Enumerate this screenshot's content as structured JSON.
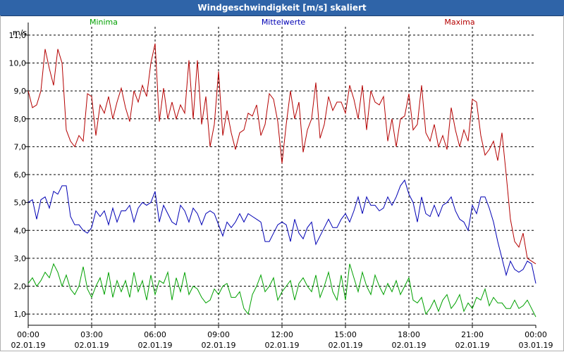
{
  "window": {
    "title": "Windgeschwindigkeit [m/s] skaliert"
  },
  "chart_data": {
    "type": "line",
    "title": "Windgeschwindigkeit [m/s] skaliert",
    "ylabel": "m/s",
    "ylim": [
      0.6,
      11.3
    ],
    "yticks": [
      "1,0",
      "2,0",
      "3,0",
      "4,0",
      "5,0",
      "6,0",
      "7,0",
      "8,0",
      "9,0",
      "10,0",
      "11,0"
    ],
    "ytick_values": [
      1,
      2,
      3,
      4,
      5,
      6,
      7,
      8,
      9,
      10,
      11
    ],
    "xlim": [
      0,
      24
    ],
    "xticks": [
      {
        "x": 0,
        "time": "00:00",
        "date": "02.01.19"
      },
      {
        "x": 3,
        "time": "03:00",
        "date": "02.01.19"
      },
      {
        "x": 6,
        "time": "06:00",
        "date": "02.01.19"
      },
      {
        "x": 9,
        "time": "09:00",
        "date": "02.01.19"
      },
      {
        "x": 12,
        "time": "12:00",
        "date": "02.01.19"
      },
      {
        "x": 15,
        "time": "15:00",
        "date": "02.01.19"
      },
      {
        "x": 18,
        "time": "18:00",
        "date": "02.01.19"
      },
      {
        "x": 21,
        "time": "21:00",
        "date": "02.01.19"
      },
      {
        "x": 24,
        "time": "00:00",
        "date": "03.01.19"
      }
    ],
    "grid": true,
    "series": [
      {
        "name": "Minima",
        "color": "#00a000",
        "x": [
          0,
          0.2,
          0.4,
          0.6,
          0.8,
          1.0,
          1.2,
          1.4,
          1.6,
          1.8,
          2.0,
          2.2,
          2.4,
          2.6,
          2.8,
          3.0,
          3.2,
          3.4,
          3.6,
          3.8,
          4.0,
          4.2,
          4.4,
          4.6,
          4.8,
          5.0,
          5.2,
          5.4,
          5.6,
          5.8,
          6.0,
          6.2,
          6.4,
          6.6,
          6.8,
          7.0,
          7.2,
          7.4,
          7.6,
          7.8,
          8.0,
          8.2,
          8.4,
          8.6,
          8.8,
          9.0,
          9.2,
          9.4,
          9.6,
          9.8,
          10.0,
          10.2,
          10.4,
          10.6,
          10.8,
          11.0,
          11.2,
          11.4,
          11.6,
          11.8,
          12.0,
          12.2,
          12.4,
          12.6,
          12.8,
          13.0,
          13.2,
          13.4,
          13.6,
          13.8,
          14.0,
          14.2,
          14.4,
          14.6,
          14.8,
          15.0,
          15.2,
          15.4,
          15.6,
          15.8,
          16.0,
          16.2,
          16.4,
          16.6,
          16.8,
          17.0,
          17.2,
          17.4,
          17.6,
          17.8,
          18.0,
          18.2,
          18.4,
          18.6,
          18.8,
          19.0,
          19.2,
          19.4,
          19.6,
          19.8,
          20.0,
          20.2,
          20.4,
          20.6,
          20.8,
          21.0,
          21.2,
          21.4,
          21.6,
          21.8,
          22.0,
          22.2,
          22.4,
          22.6,
          22.8,
          23.0,
          23.2,
          23.4,
          23.6,
          23.8,
          24.0
        ],
        "values": [
          2.1,
          2.3,
          2.0,
          2.2,
          2.5,
          2.3,
          2.8,
          2.5,
          2.0,
          2.4,
          1.9,
          1.7,
          2.0,
          2.7,
          1.9,
          1.6,
          2.0,
          2.3,
          1.7,
          2.5,
          1.6,
          2.2,
          1.8,
          2.2,
          1.6,
          2.5,
          1.8,
          2.2,
          1.5,
          2.4,
          1.7,
          2.2,
          2.1,
          2.5,
          1.5,
          2.3,
          1.8,
          2.5,
          1.7,
          2.0,
          1.9,
          1.6,
          1.4,
          1.5,
          1.9,
          1.7,
          2.0,
          2.1,
          1.6,
          1.6,
          1.8,
          1.2,
          1.0,
          1.7,
          2.0,
          2.4,
          1.8,
          2.0,
          2.3,
          1.5,
          1.8,
          2.0,
          2.2,
          1.5,
          2.1,
          2.3,
          2.0,
          1.8,
          2.4,
          1.6,
          2.0,
          2.5,
          1.8,
          1.5,
          2.4,
          1.5,
          2.8,
          2.3,
          1.8,
          2.5,
          2.0,
          1.7,
          2.4,
          2.0,
          1.7,
          2.1,
          1.8,
          2.2,
          1.7,
          2.0,
          2.3,
          1.5,
          1.4,
          1.6,
          1.0,
          1.2,
          1.5,
          1.1,
          1.5,
          1.7,
          1.2,
          1.4,
          1.7,
          1.1,
          1.4,
          1.2,
          1.6,
          1.5,
          1.9,
          1.3,
          1.6,
          1.4,
          1.4,
          1.2,
          1.2,
          1.5,
          1.2,
          1.3,
          1.5,
          1.2,
          0.9
        ]
      },
      {
        "name": "Mittelwerte",
        "color": "#0000b4",
        "x": [
          0,
          0.2,
          0.4,
          0.6,
          0.8,
          1.0,
          1.2,
          1.4,
          1.6,
          1.8,
          2.0,
          2.2,
          2.4,
          2.6,
          2.8,
          3.0,
          3.2,
          3.4,
          3.6,
          3.8,
          4.0,
          4.2,
          4.4,
          4.6,
          4.8,
          5.0,
          5.2,
          5.4,
          5.6,
          5.8,
          6.0,
          6.2,
          6.4,
          6.6,
          6.8,
          7.0,
          7.2,
          7.4,
          7.6,
          7.8,
          8.0,
          8.2,
          8.4,
          8.6,
          8.8,
          9.0,
          9.2,
          9.4,
          9.6,
          9.8,
          10.0,
          10.2,
          10.4,
          10.6,
          10.8,
          11.0,
          11.2,
          11.4,
          11.6,
          11.8,
          12.0,
          12.2,
          12.4,
          12.6,
          12.8,
          13.0,
          13.2,
          13.4,
          13.6,
          13.8,
          14.0,
          14.2,
          14.4,
          14.6,
          14.8,
          15.0,
          15.2,
          15.4,
          15.6,
          15.8,
          16.0,
          16.2,
          16.4,
          16.6,
          16.8,
          17.0,
          17.2,
          17.4,
          17.6,
          17.8,
          18.0,
          18.2,
          18.4,
          18.6,
          18.8,
          19.0,
          19.2,
          19.4,
          19.6,
          19.8,
          20.0,
          20.2,
          20.4,
          20.6,
          20.8,
          21.0,
          21.2,
          21.4,
          21.6,
          21.8,
          22.0,
          22.2,
          22.4,
          22.6,
          22.8,
          23.0,
          23.2,
          23.4,
          23.6,
          23.8,
          24.0
        ],
        "values": [
          5.0,
          5.1,
          4.4,
          5.1,
          5.2,
          4.8,
          5.4,
          5.3,
          5.6,
          5.6,
          4.5,
          4.2,
          4.2,
          4.0,
          3.9,
          4.1,
          4.7,
          4.5,
          4.7,
          4.2,
          4.8,
          4.3,
          4.7,
          4.7,
          4.9,
          4.3,
          4.8,
          5.0,
          4.9,
          5.0,
          5.4,
          4.3,
          4.9,
          4.6,
          4.3,
          4.2,
          4.9,
          4.7,
          4.3,
          4.8,
          4.6,
          4.2,
          4.6,
          4.7,
          4.6,
          4.2,
          3.8,
          4.3,
          4.1,
          4.3,
          4.6,
          4.3,
          4.6,
          4.5,
          4.4,
          4.3,
          3.6,
          3.6,
          3.9,
          4.2,
          4.3,
          4.2,
          3.6,
          4.4,
          3.9,
          3.7,
          4.1,
          4.3,
          3.5,
          3.8,
          4.1,
          4.4,
          4.1,
          4.1,
          4.4,
          4.6,
          4.3,
          4.7,
          5.2,
          4.6,
          5.2,
          4.9,
          4.9,
          4.7,
          4.8,
          5.2,
          4.9,
          5.2,
          5.6,
          5.8,
          5.3,
          5.0,
          4.3,
          5.2,
          4.6,
          4.5,
          4.9,
          4.5,
          4.9,
          5.0,
          5.2,
          4.7,
          4.4,
          4.3,
          4.0,
          4.9,
          4.6,
          5.2,
          5.2,
          4.8,
          4.3,
          3.6,
          3.0,
          2.4,
          2.9,
          2.6,
          2.5,
          2.6,
          2.9,
          2.8,
          2.1
        ]
      },
      {
        "name": "Maxima",
        "color": "#b40000",
        "x": [
          0,
          0.2,
          0.4,
          0.6,
          0.8,
          1.0,
          1.2,
          1.4,
          1.6,
          1.8,
          2.0,
          2.2,
          2.4,
          2.6,
          2.8,
          3.0,
          3.2,
          3.4,
          3.6,
          3.8,
          4.0,
          4.2,
          4.4,
          4.6,
          4.8,
          5.0,
          5.2,
          5.4,
          5.6,
          5.8,
          6.0,
          6.2,
          6.4,
          6.6,
          6.8,
          7.0,
          7.2,
          7.4,
          7.6,
          7.8,
          8.0,
          8.2,
          8.4,
          8.6,
          8.8,
          9.0,
          9.2,
          9.4,
          9.6,
          9.8,
          10.0,
          10.2,
          10.4,
          10.6,
          10.8,
          11.0,
          11.2,
          11.4,
          11.6,
          11.8,
          12.0,
          12.2,
          12.4,
          12.6,
          12.8,
          13.0,
          13.2,
          13.4,
          13.6,
          13.8,
          14.0,
          14.2,
          14.4,
          14.6,
          14.8,
          15.0,
          15.2,
          15.4,
          15.6,
          15.8,
          16.0,
          16.2,
          16.4,
          16.6,
          16.8,
          17.0,
          17.2,
          17.4,
          17.6,
          17.8,
          18.0,
          18.2,
          18.4,
          18.6,
          18.8,
          19.0,
          19.2,
          19.4,
          19.6,
          19.8,
          20.0,
          20.2,
          20.4,
          20.6,
          20.8,
          21.0,
          21.2,
          21.4,
          21.6,
          21.8,
          22.0,
          22.2,
          22.4,
          22.6,
          22.8,
          23.0,
          23.2,
          23.4,
          23.6,
          23.8,
          24.0
        ],
        "values": [
          9.0,
          8.4,
          8.5,
          9.0,
          10.5,
          9.8,
          9.2,
          10.5,
          10.0,
          7.6,
          7.2,
          7.0,
          7.4,
          7.2,
          8.9,
          8.8,
          7.4,
          8.5,
          8.2,
          8.8,
          8.0,
          8.6,
          9.1,
          8.4,
          7.9,
          9.0,
          8.6,
          9.2,
          8.8,
          10.0,
          10.7,
          7.9,
          9.1,
          8.0,
          8.6,
          8.0,
          8.5,
          8.2,
          10.1,
          8.0,
          10.1,
          7.8,
          8.8,
          7.0,
          7.8,
          9.7,
          7.4,
          8.3,
          7.5,
          6.9,
          7.5,
          7.6,
          8.2,
          8.1,
          8.5,
          7.4,
          7.8,
          8.9,
          8.7,
          7.9,
          6.4,
          7.8,
          9.0,
          8.0,
          8.6,
          6.8,
          7.6,
          8.0,
          9.3,
          7.3,
          7.8,
          8.8,
          8.3,
          8.6,
          8.6,
          8.2,
          9.2,
          8.7,
          8.0,
          9.2,
          7.6,
          9.0,
          8.6,
          8.5,
          8.8,
          7.2,
          8.0,
          7.0,
          8.0,
          8.1,
          8.9,
          7.6,
          7.8,
          9.2,
          7.5,
          7.2,
          7.8,
          7.0,
          7.4,
          6.9,
          8.4,
          7.6,
          7.0,
          7.6,
          7.2,
          8.7,
          8.6,
          7.4,
          6.7,
          6.9,
          7.2,
          6.5,
          7.5,
          6.0,
          4.4,
          3.6,
          3.4,
          3.9,
          3.0,
          2.9,
          2.8
        ]
      }
    ]
  }
}
